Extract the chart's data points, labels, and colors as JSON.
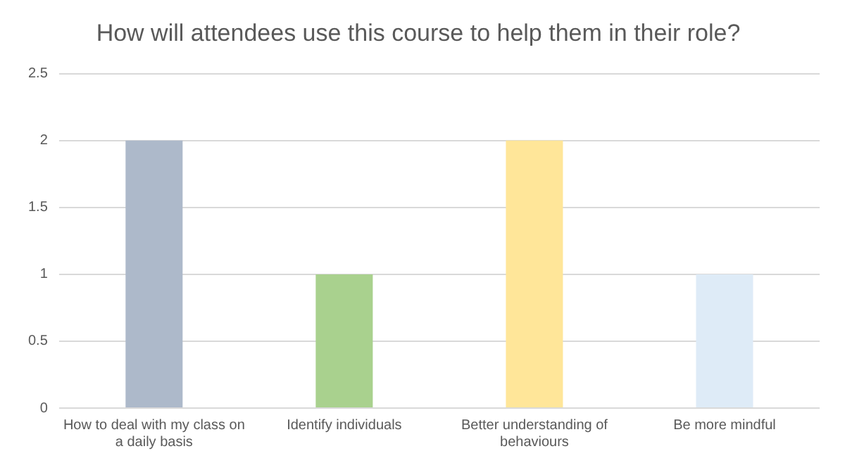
{
  "chart_data": {
    "type": "bar",
    "title": "How will attendees use this course to help them in their role?",
    "categories": [
      "How to deal with my class on a daily basis",
      "Identify individuals",
      "Better understanding of behaviours",
      "Be more mindful"
    ],
    "values": [
      2,
      1,
      2,
      1
    ],
    "colors": [
      "#adb9ca",
      "#a9d18e",
      "#ffe699",
      "#deebf7"
    ],
    "ylim": [
      0,
      2.5
    ],
    "yticks": [
      0,
      0.5,
      1,
      1.5,
      2,
      2.5
    ],
    "grid": "y",
    "legend": false
  }
}
